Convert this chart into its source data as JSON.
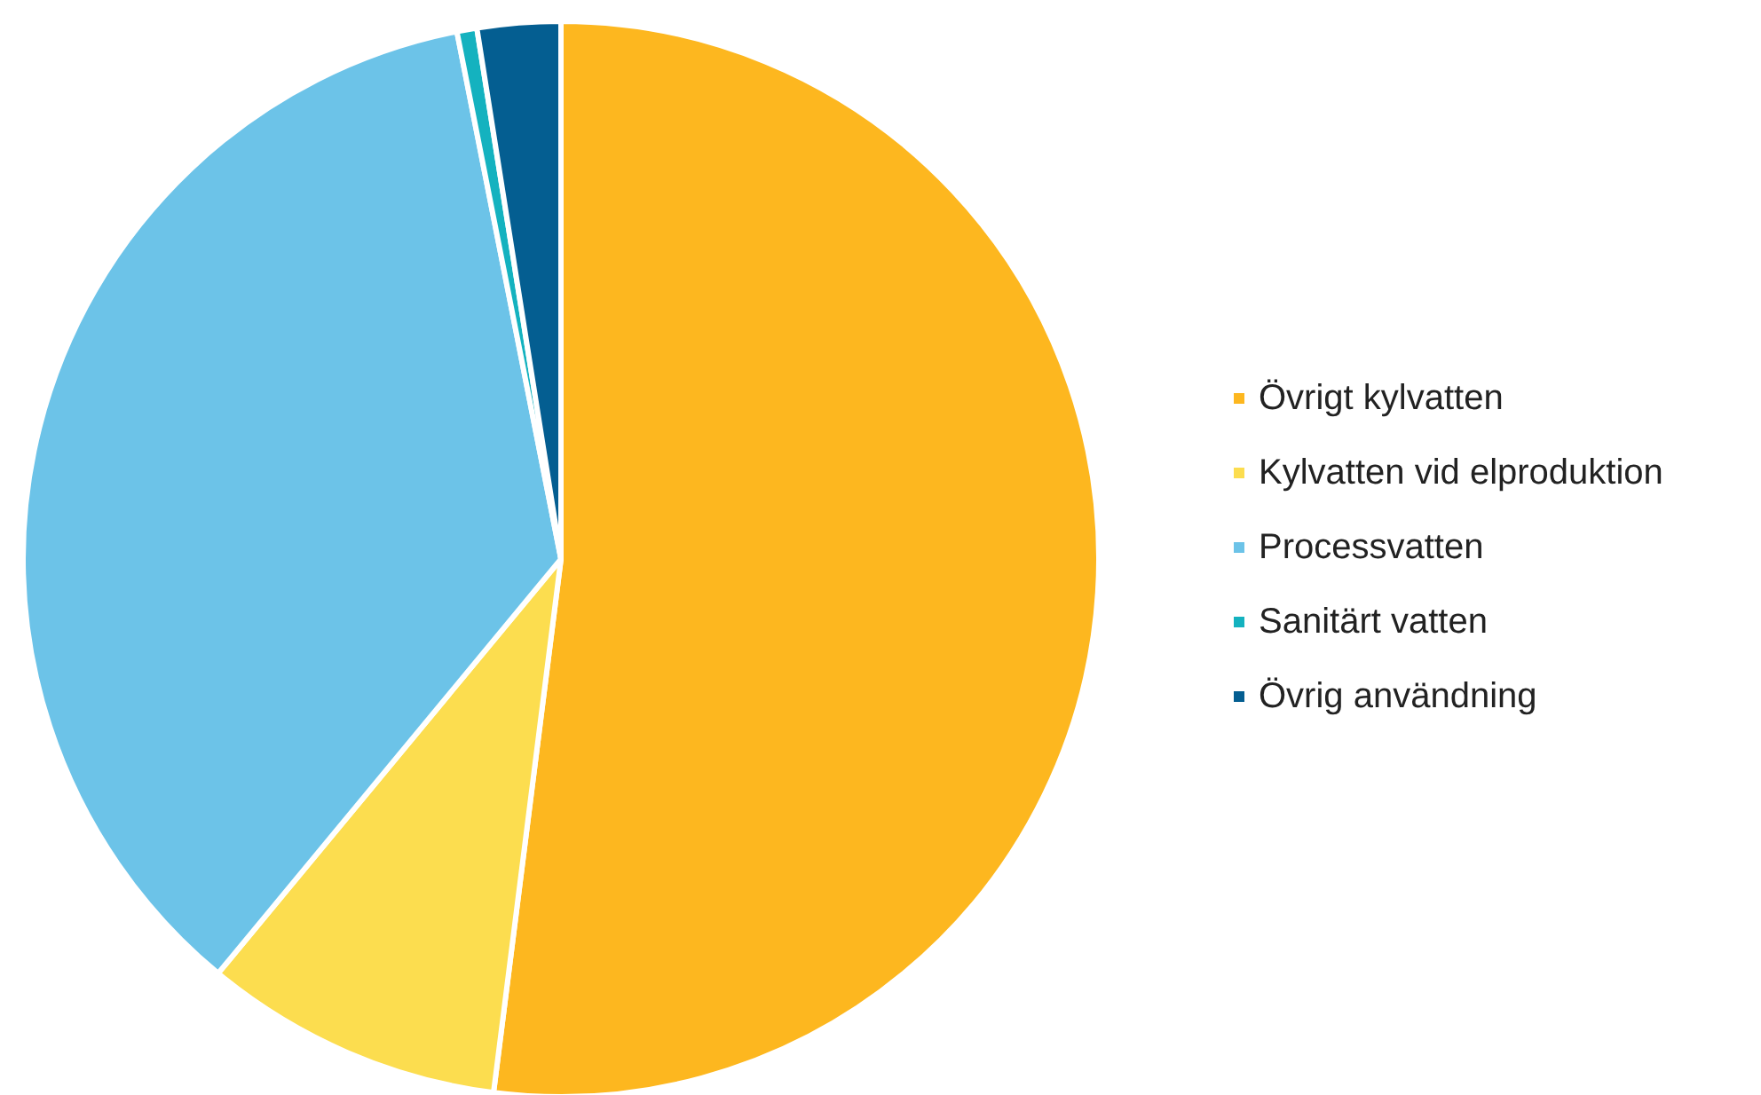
{
  "chart_data": {
    "type": "pie",
    "categories": [
      "Övrigt kylvatten",
      "Kylvatten vid elproduktion",
      "Processvatten",
      "Sanitärt vatten",
      "Övrig användning"
    ],
    "values": [
      52.0,
      9.0,
      35.9,
      0.6,
      2.5
    ],
    "colors": [
      "#fdb71f",
      "#fcdd4f",
      "#6cc3e8",
      "#14b2bf",
      "#045e91"
    ],
    "legend": "right"
  }
}
